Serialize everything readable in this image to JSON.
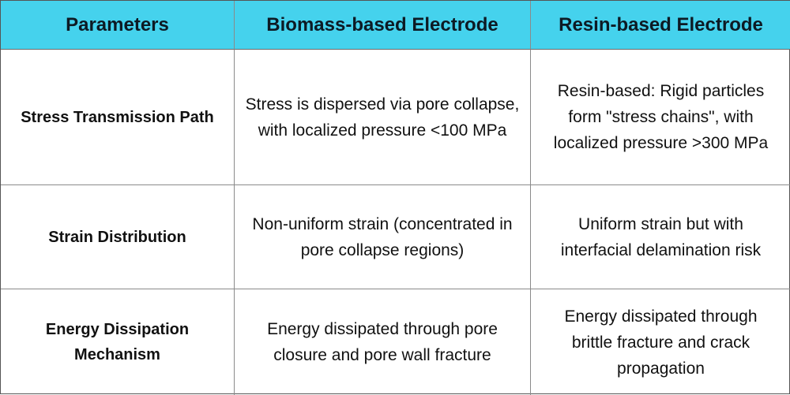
{
  "table": {
    "headers": [
      "Parameters",
      "Biomass-based Electrode",
      "Resin-based Electrode"
    ],
    "header_color": "#45d2ed",
    "rows": [
      {
        "parameter": "Stress Transmission Path",
        "biomass": "Stress is dispersed via pore collapse, with localized pressure <100 MPa",
        "resin": "Resin-based: Rigid particles form \"stress chains\", with localized pressure >300 MPa"
      },
      {
        "parameter": "Strain Distribution",
        "biomass": "Non-uniform strain (concentrated in pore collapse regions)",
        "resin": "Uniform strain but with interfacial delamination risk"
      },
      {
        "parameter": "Energy Dissipation Mechanism",
        "biomass": "Energy dissipated through pore closure and pore wall fracture",
        "resin": "Energy dissipated through brittle fracture and crack propagation"
      }
    ]
  }
}
